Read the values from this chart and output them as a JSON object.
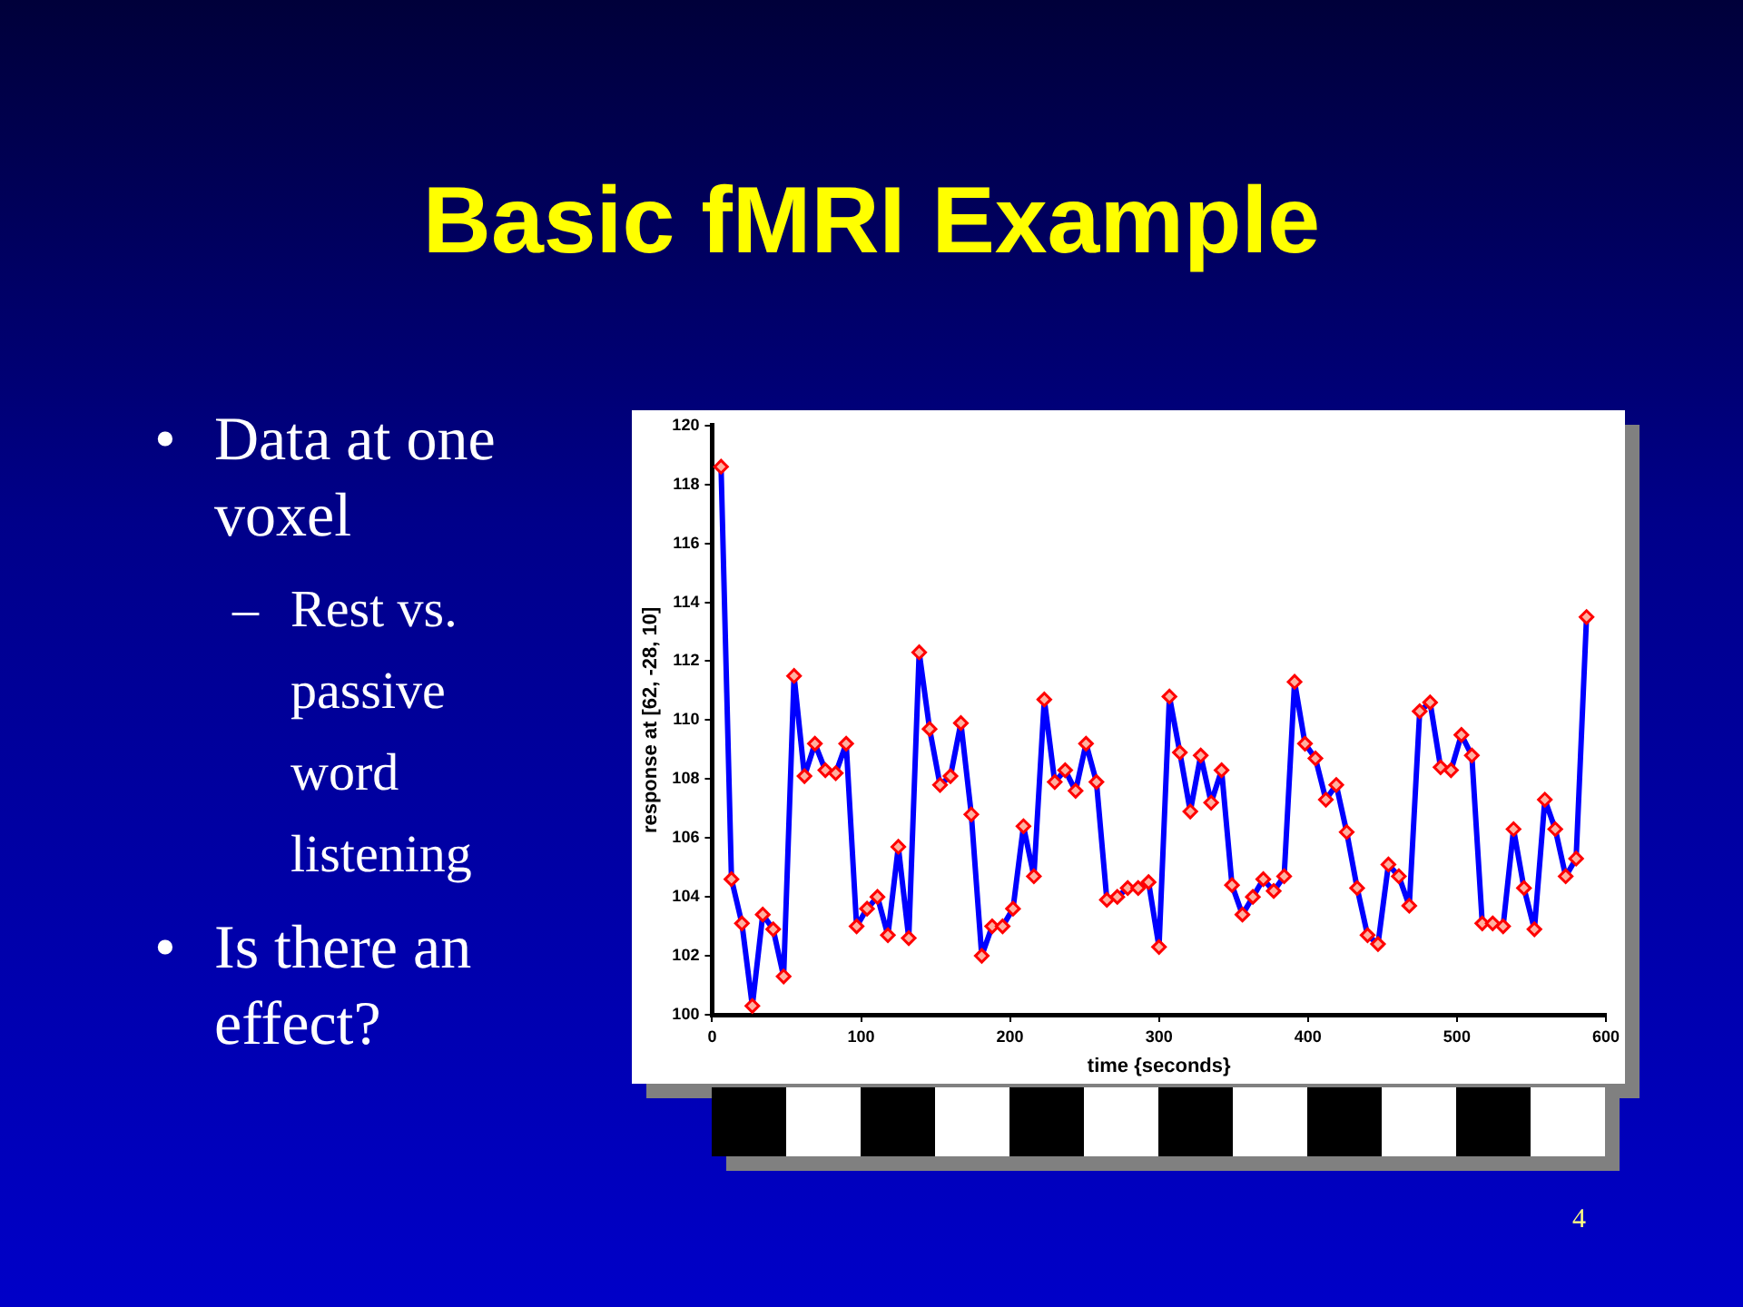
{
  "chart_data": {
    "type": "line",
    "title": "Basic fMRI Example",
    "xlabel": "time {seconds}",
    "ylabel": "response at [62, -28, 10]",
    "x": [
      6,
      13,
      20,
      27,
      34,
      41,
      48,
      55,
      62,
      69,
      76,
      83,
      90,
      97,
      104,
      111,
      118,
      125,
      132,
      139,
      146,
      153,
      160,
      167,
      174,
      181,
      188,
      195,
      202,
      209,
      216,
      223,
      230,
      237,
      244,
      251,
      258,
      265,
      272,
      279,
      286,
      293,
      300,
      307,
      314,
      321,
      328,
      335,
      342,
      349,
      356,
      363,
      370,
      377,
      384,
      391,
      398,
      405,
      412,
      419,
      426,
      433,
      440,
      447,
      454,
      461,
      468,
      475,
      482,
      489,
      496,
      503,
      510,
      517,
      524,
      531,
      538,
      545,
      552,
      559,
      566,
      573,
      580,
      587
    ],
    "series": [
      {
        "color": "#0000ff",
        "values": [
          118.6,
          104.6,
          103.1,
          100.3,
          103.4,
          102.9,
          101.3,
          111.5,
          108.1,
          109.2,
          108.3,
          108.2,
          109.2,
          103.0,
          103.6,
          104.0,
          102.7,
          105.7,
          102.6,
          112.3,
          109.7,
          107.8,
          108.1,
          109.9,
          106.8,
          102.0,
          103.0,
          103.0,
          103.6,
          106.4,
          104.7,
          110.7,
          107.9,
          108.3,
          107.6,
          109.2,
          107.9,
          103.9,
          104.0,
          104.3,
          104.3,
          104.5,
          102.3,
          110.8,
          108.9,
          106.9,
          108.8,
          107.2,
          108.3,
          104.4,
          103.4,
          104.0,
          104.6,
          104.2,
          104.7,
          111.3,
          109.2,
          108.7,
          107.3,
          107.8,
          106.2,
          104.3,
          102.7,
          102.4,
          105.1,
          104.7,
          103.7,
          110.3,
          110.6,
          108.4,
          108.3,
          109.5,
          108.8,
          103.1,
          103.1,
          103.0,
          106.3,
          104.3,
          102.9,
          107.3,
          106.3,
          104.7,
          105.3,
          113.5
        ]
      }
    ],
    "xlim": [
      0,
      600
    ],
    "xticks": [
      0,
      100,
      200,
      300,
      400,
      500,
      600
    ],
    "ylim": [
      100,
      120
    ],
    "yticks": [
      100,
      102,
      104,
      106,
      108,
      110,
      112,
      114,
      116,
      118,
      120
    ],
    "grid": false,
    "legend": false,
    "marker": "diamond",
    "line_style": "solid",
    "annotations": [
      "•",
      "Data at one voxel",
      "–",
      "Rest vs. passive word listening",
      "•",
      "Is there an effect?",
      "4"
    ]
  }
}
